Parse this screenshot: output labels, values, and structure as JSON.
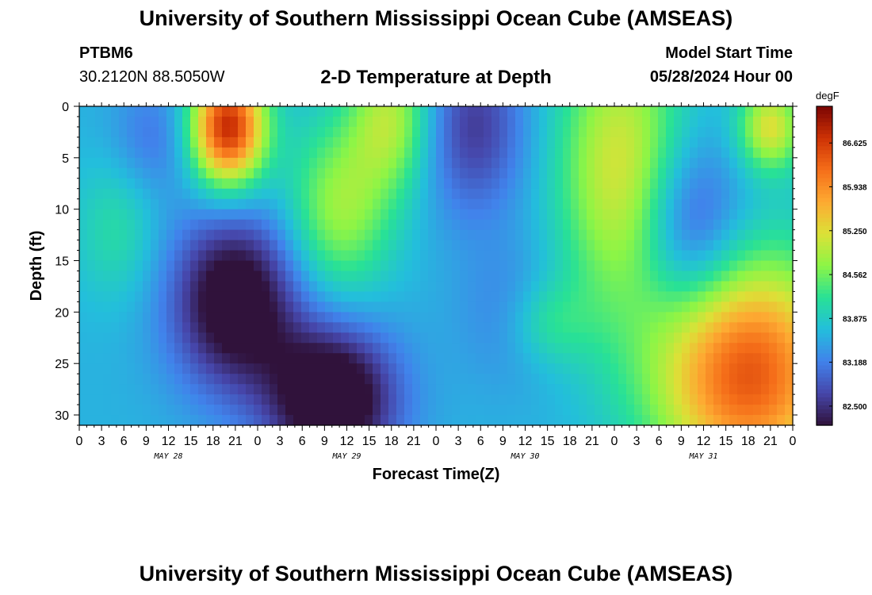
{
  "header": {
    "main_title": "University of Southern Mississippi Ocean Cube (AMSEAS)",
    "station_id": "PTBM6",
    "station_coords": "30.2120N  88.5050W",
    "plot_title": "2-D Temperature at Depth",
    "model_label": "Model Start Time",
    "model_time": "05/28/2024 Hour 00"
  },
  "footer": {
    "title": "University of Southern Mississippi Ocean Cube (AMSEAS)"
  },
  "colorbar": {
    "units": "degF",
    "ticks": [
      "86.625",
      "85.938",
      "85.250",
      "84.562",
      "83.875",
      "83.188",
      "82.500"
    ],
    "min": 82.2,
    "max": 87.2
  },
  "chart_data": {
    "type": "heatmap",
    "xlabel": "Forecast Time(Z)",
    "ylabel": "Depth (ft)",
    "x_ticks": [
      "0",
      "3",
      "6",
      "9",
      "12",
      "15",
      "18",
      "21",
      "0",
      "3",
      "6",
      "9",
      "12",
      "15",
      "18",
      "21",
      "0",
      "3",
      "6",
      "9",
      "12",
      "15",
      "18",
      "21",
      "0",
      "3",
      "6",
      "9",
      "12",
      "15",
      "18",
      "21",
      "0"
    ],
    "x_hours": [
      0,
      3,
      6,
      9,
      12,
      15,
      18,
      21,
      24,
      27,
      30,
      33,
      36,
      39,
      42,
      45,
      48,
      51,
      54,
      57,
      60,
      63,
      66,
      69,
      72,
      75,
      78,
      81,
      84,
      87,
      90,
      93,
      96
    ],
    "day_labels": [
      {
        "label": "MAY 28",
        "hour": 12
      },
      {
        "label": "MAY 29",
        "hour": 36
      },
      {
        "label": "MAY 30",
        "hour": 60
      },
      {
        "label": "MAY 31",
        "hour": 84
      }
    ],
    "y_ticks": [
      "0",
      "5",
      "10",
      "15",
      "20",
      "25",
      "30"
    ],
    "y_values": [
      0,
      5,
      10,
      15,
      20,
      25,
      30
    ],
    "xlim": [
      0,
      96
    ],
    "ylim": [
      0,
      31
    ],
    "units": "degF",
    "blobs": [
      {
        "t": 20,
        "d": 2,
        "st": 3.5,
        "sd": 4,
        "v": 3.2
      },
      {
        "t": 21,
        "d": 19,
        "st": 6,
        "sd": 6,
        "v": -1.8
      },
      {
        "t": 34,
        "d": 28.5,
        "st": 6,
        "sd": 5,
        "v": -2.0
      },
      {
        "t": 42,
        "d": 1,
        "st": 4,
        "sd": 5,
        "v": 1.3
      },
      {
        "t": 35,
        "d": 10,
        "st": 5,
        "sd": 6,
        "v": 1.2
      },
      {
        "t": 53,
        "d": 2,
        "st": 5,
        "sd": 6,
        "v": -1.0
      },
      {
        "t": 73,
        "d": 6,
        "st": 6,
        "sd": 10,
        "v": 1.6
      },
      {
        "t": 90,
        "d": 26,
        "st": 9,
        "sd": 8,
        "v": 2.8
      },
      {
        "t": 93,
        "d": 2,
        "st": 3,
        "sd": 3,
        "v": 1.6
      },
      {
        "t": 82,
        "d": 12,
        "st": 5,
        "sd": 6,
        "v": -1.1
      },
      {
        "t": 58,
        "d": 20,
        "st": 5,
        "sd": 5,
        "v": -0.4
      },
      {
        "t": 5,
        "d": 12,
        "st": 4,
        "sd": 5,
        "v": 0.5
      },
      {
        "t": 63,
        "d": 21,
        "st": 4,
        "sd": 3,
        "v": 0.6
      },
      {
        "t": 10,
        "d": 3,
        "st": 4,
        "sd": 4,
        "v": -0.5
      }
    ],
    "base_value": 83.6
  }
}
